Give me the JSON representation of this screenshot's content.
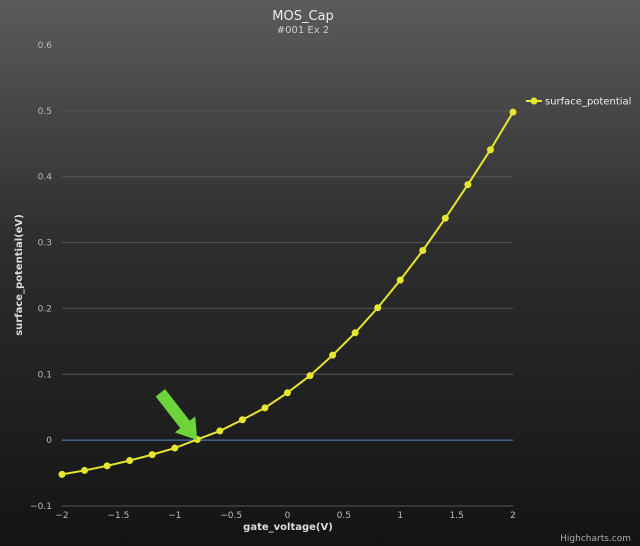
{
  "chart_data": {
    "type": "line",
    "title": "MOS_Cap",
    "subtitle": "#001 Ex 2",
    "xlabel": "gate_voltage(V)",
    "ylabel": "surface_potential(eV)",
    "xlim": [
      -2,
      2
    ],
    "ylim": [
      -0.1,
      0.6
    ],
    "x_ticks": [
      "−2",
      "−1.5",
      "−1",
      "−0.5",
      "0",
      "0.5",
      "1",
      "1.5",
      "2"
    ],
    "y_ticks": [
      "−0.1",
      "0",
      "0.1",
      "0.2",
      "0.3",
      "0.4",
      "0.5",
      "0.6"
    ],
    "grid": true,
    "legend_position": "top-right",
    "series": [
      {
        "name": "surface_potential",
        "color": "#e6e62e",
        "x": [
          -2,
          -1.8,
          -1.6,
          -1.4,
          -1.2,
          -1.0,
          -0.8,
          -0.6,
          -0.4,
          -0.2,
          0,
          0.2,
          0.4,
          0.6,
          0.8,
          1.0,
          1.2,
          1.4,
          1.6,
          1.8,
          2.0
        ],
        "y": [
          -0.052,
          -0.046,
          -0.039,
          -0.031,
          -0.022,
          -0.012,
          0.001,
          0.014,
          0.031,
          0.049,
          0.072,
          0.098,
          0.129,
          0.163,
          0.201,
          0.243,
          0.288,
          0.337,
          0.388,
          0.441,
          0.498
        ]
      }
    ],
    "reference_line": {
      "y": 0,
      "color": "#4b6aa8"
    },
    "annotation": {
      "type": "arrow",
      "icon": "green-arrow-icon",
      "color": "#6ed43c",
      "points_to_x": -0.8
    }
  },
  "credits": "Highcharts.com"
}
